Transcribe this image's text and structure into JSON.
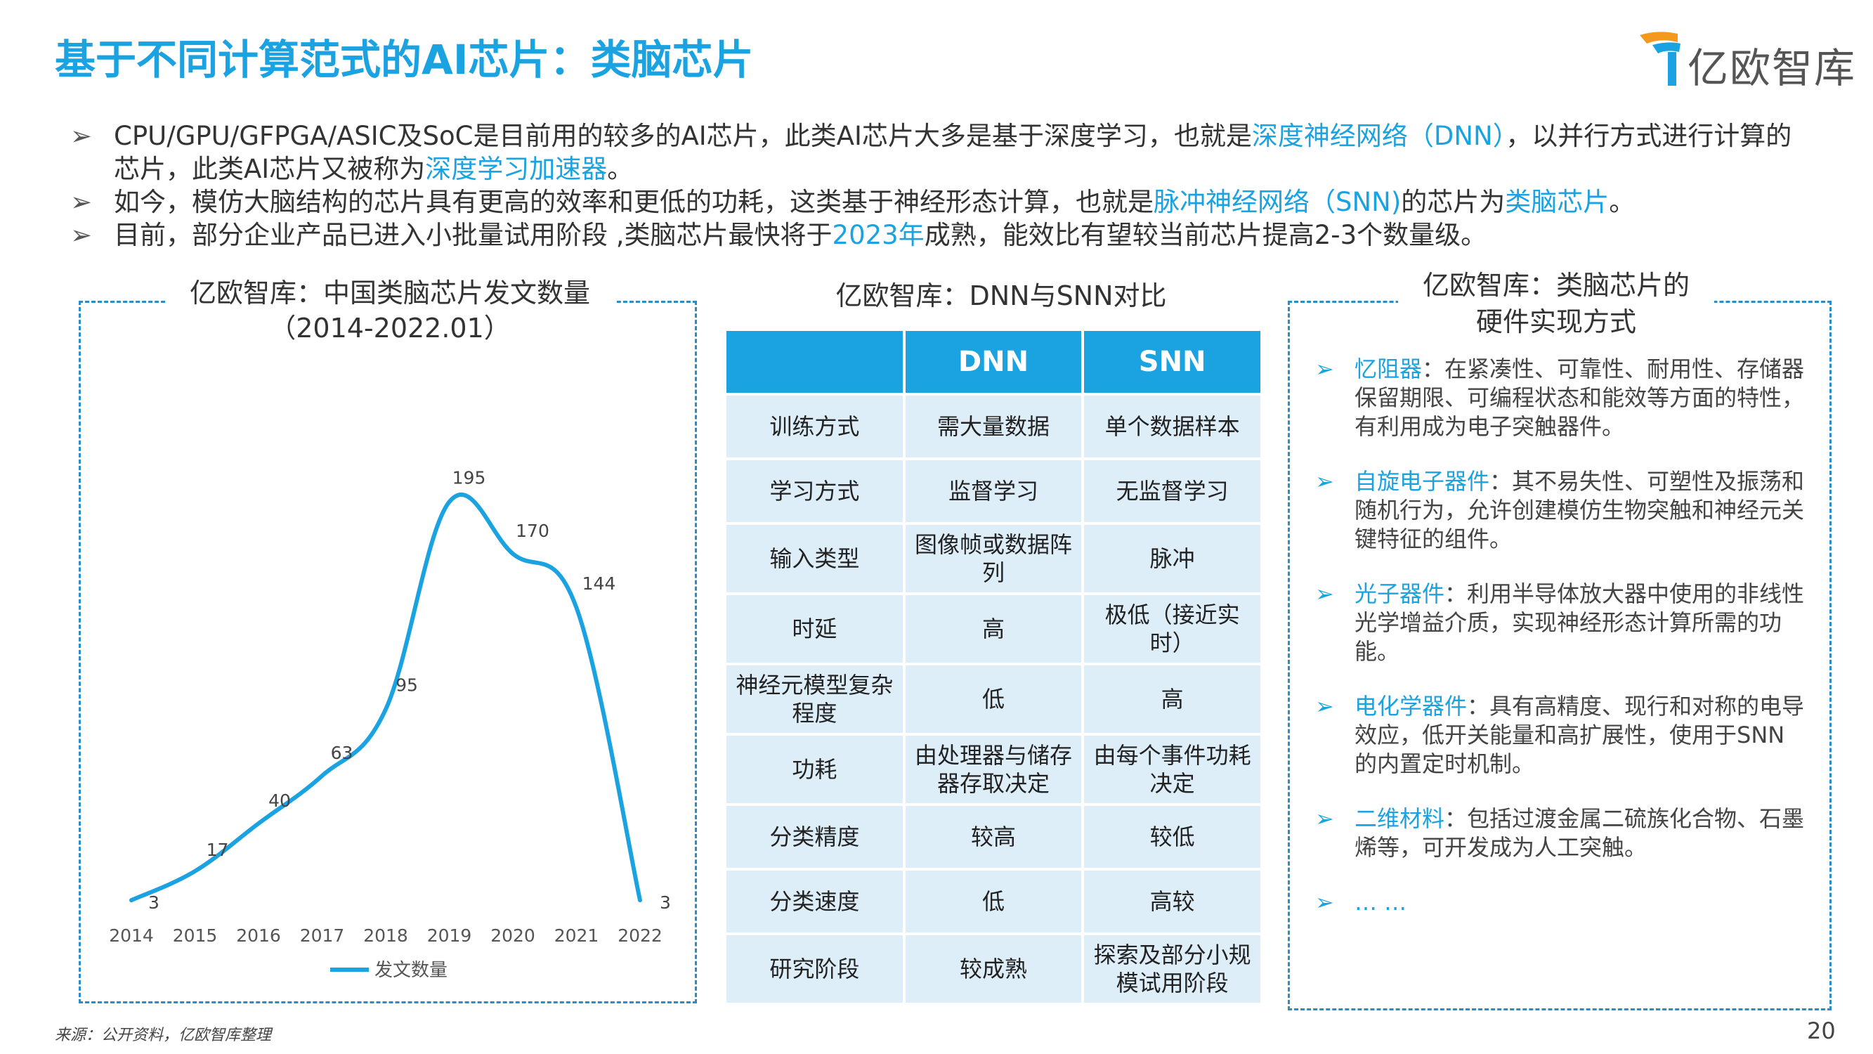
{
  "title": "基于不同计算范式的AI芯片：类脑芯片",
  "brand": "亿欧智库",
  "bullets": [
    [
      "CPU/GPU/GFPGA/ASIC及SoC是目前用的较多的AI芯片，此类AI芯片大多是基于深度学习，也就是",
      "深度神经网络（DNN）",
      "，以并行方式进行计算的芯片，此类AI芯片又被称为",
      "深度学习加速器",
      "。"
    ],
    [
      "如今，模仿大脑结构的芯片具有更高的效率和更低的功耗，这类基于神经形态计算，也就是",
      "脉冲神经网络（SNN)",
      "的芯片为",
      "类脑芯片",
      "。"
    ],
    [
      "目前，部分企业产品已进入小批量试用阶段 ,类脑芯片最快将于",
      "2023年",
      "成熟，能效比有望较当前芯片提高2-3个数量级。"
    ]
  ],
  "chart_box": {
    "title": "亿欧智库：中国类脑芯片发文数量",
    "subtitle": "（2014-2022.01）"
  },
  "chart_data": {
    "type": "line",
    "title": "亿欧智库：中国类脑芯片发文数量（2014-2022.01）",
    "categories": [
      "2014",
      "2015",
      "2016",
      "2017",
      "2018",
      "2019",
      "2020",
      "2021",
      "2022"
    ],
    "series": [
      {
        "name": "发文数量",
        "values": [
          3,
          17,
          40,
          63,
          95,
          195,
          170,
          144,
          3
        ],
        "color": "#1ba2e0"
      }
    ],
    "ylim": [
      0,
      210
    ],
    "grid": false,
    "legend": "bottom"
  },
  "table_title": "亿欧智库：DNN与SNN对比",
  "table": {
    "headers": [
      "",
      "DNN",
      "SNN"
    ],
    "rows": [
      [
        "训练方式",
        "需大量数据",
        "单个数据样本"
      ],
      [
        "学习方式",
        "监督学习",
        "无监督学习"
      ],
      [
        "输入类型",
        "图像帧或数据阵列",
        "脉冲"
      ],
      [
        "时延",
        "高",
        "极低（接近实时）"
      ],
      [
        "神经元模型复杂程度",
        "低",
        "高"
      ],
      [
        "功耗",
        "由处理器与储存器存取决定",
        "由每个事件功耗决定"
      ],
      [
        "分类精度",
        "较高",
        "较低"
      ],
      [
        "分类速度",
        "低",
        "高较"
      ],
      [
        "研究阶段",
        "较成熟",
        "探索及部分小规模试用阶段"
      ]
    ]
  },
  "hw_box": {
    "title_line1": "亿欧智库：类脑芯片的",
    "title_line2": "硬件实现方式",
    "items": [
      {
        "key": "忆阻器",
        "text": "：在紧凑性、可靠性、耐用性、存储器保留期限、可编程状态和能效等方面的特性，有利用成为电子突触器件。"
      },
      {
        "key": "自旋电子器件",
        "text": "：其不易失性、可塑性及振荡和随机行为，允许创建模仿生物突触和神经元关键特征的组件。"
      },
      {
        "key": "光子器件",
        "text": "：利用半导体放大器中使用的非线性光学增益介质，实现神经形态计算所需的功能。"
      },
      {
        "key": "电化学器件",
        "text": "：具有高精度、现行和对称的电导效应，低开关能量和高扩展性，使用于SNN的内置定时机制。"
      },
      {
        "key": "二维材料",
        "text": "：包括过渡金属二硫族化合物、石墨烯等，可开发成为人工突触。"
      },
      {
        "key": "… …",
        "text": ""
      }
    ]
  },
  "source": "来源：公开资料，亿欧智库整理",
  "page_number": "20"
}
